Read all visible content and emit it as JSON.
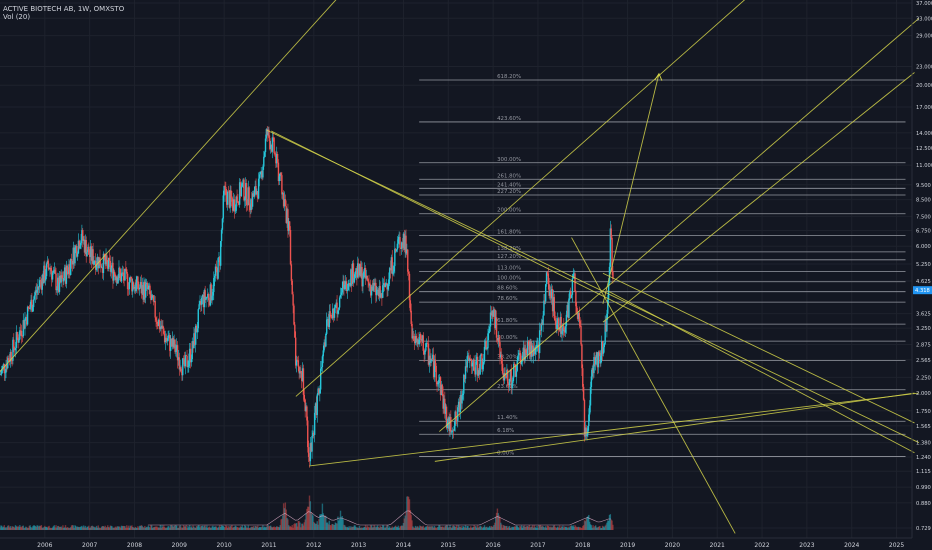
{
  "header": {
    "symbol_line": "ACTIVE BIOTECH AB, 1W, OMXSTO",
    "volume_label": "Vol (20)"
  },
  "colors": {
    "background": "#131722",
    "grid": "#1e222d",
    "up_candle": "#26c6da",
    "down_candle": "#ef5350",
    "drawing": "#d4d44a",
    "fib_level": "#9598a1",
    "axis_text": "#d1d4dc",
    "price_tag": "#2196f3"
  },
  "chart_data": {
    "type": "candlestick",
    "title": "ACTIVE BIOTECH AB, 1W, OMXSTO",
    "price_axis": {
      "scale": "log",
      "ticks": [
        "37.000",
        "33.000",
        "29.000",
        "23.000",
        "20.000",
        "17.000",
        "14.000",
        "12.500",
        "11.000",
        "9.500",
        "8.500",
        "7.500",
        "6.750",
        "6.000",
        "5.250",
        "4.625",
        "3.625",
        "3.250",
        "2.875",
        "2.565",
        "2.250",
        "2.000",
        "1.750",
        "1.565",
        "1.380",
        "1.240",
        "1.115",
        "0.990",
        "0.880",
        "0.729"
      ]
    },
    "time_axis": {
      "ticks": [
        "2006",
        "2007",
        "2008",
        "2009",
        "2010",
        "2011",
        "2012",
        "2013",
        "2014",
        "2015",
        "2016",
        "2017",
        "2018",
        "2019",
        "2020",
        "2021",
        "2022",
        "2023",
        "2024",
        "2025"
      ]
    },
    "last_price": "4.318",
    "price_path": [
      [
        2005.0,
        2.3
      ],
      [
        2005.3,
        2.8
      ],
      [
        2005.6,
        3.6
      ],
      [
        2005.9,
        4.6
      ],
      [
        2006.1,
        5.2
      ],
      [
        2006.3,
        4.4
      ],
      [
        2006.5,
        5.0
      ],
      [
        2006.8,
        6.5
      ],
      [
        2007.0,
        5.6
      ],
      [
        2007.3,
        5.3
      ],
      [
        2007.6,
        4.9
      ],
      [
        2007.9,
        4.6
      ],
      [
        2008.1,
        4.4
      ],
      [
        2008.3,
        4.3
      ],
      [
        2008.5,
        3.5
      ],
      [
        2008.7,
        3.0
      ],
      [
        2008.9,
        2.8
      ],
      [
        2009.1,
        2.4
      ],
      [
        2009.3,
        2.8
      ],
      [
        2009.5,
        4.0
      ],
      [
        2009.7,
        4.2
      ],
      [
        2009.9,
        5.4
      ],
      [
        2010.0,
        9.0
      ],
      [
        2010.2,
        8.2
      ],
      [
        2010.4,
        9.3
      ],
      [
        2010.6,
        8.4
      ],
      [
        2010.8,
        9.6
      ],
      [
        2010.95,
        14.0
      ],
      [
        2011.1,
        12.5
      ],
      [
        2011.3,
        9.0
      ],
      [
        2011.45,
        6.8
      ],
      [
        2011.6,
        2.4
      ],
      [
        2011.75,
        2.3
      ],
      [
        2011.9,
        1.25
      ],
      [
        2012.1,
        2.0
      ],
      [
        2012.3,
        3.4
      ],
      [
        2012.5,
        3.8
      ],
      [
        2012.7,
        4.6
      ],
      [
        2012.9,
        5.0
      ],
      [
        2013.1,
        4.8
      ],
      [
        2013.3,
        4.4
      ],
      [
        2013.5,
        4.1
      ],
      [
        2013.7,
        5.0
      ],
      [
        2013.9,
        6.2
      ],
      [
        2014.05,
        6.2
      ],
      [
        2014.2,
        3.0
      ],
      [
        2014.4,
        2.9
      ],
      [
        2014.6,
        2.6
      ],
      [
        2014.8,
        2.2
      ],
      [
        2015.0,
        1.55
      ],
      [
        2015.2,
        1.65
      ],
      [
        2015.4,
        2.5
      ],
      [
        2015.6,
        2.4
      ],
      [
        2015.8,
        2.6
      ],
      [
        2016.0,
        3.8
      ],
      [
        2016.2,
        2.4
      ],
      [
        2016.4,
        2.2
      ],
      [
        2016.6,
        2.6
      ],
      [
        2016.8,
        2.8
      ],
      [
        2017.0,
        2.7
      ],
      [
        2017.2,
        4.8
      ],
      [
        2017.4,
        3.5
      ],
      [
        2017.6,
        3.3
      ],
      [
        2017.8,
        4.8
      ],
      [
        2017.95,
        3.0
      ],
      [
        2018.05,
        1.4
      ],
      [
        2018.25,
        2.5
      ],
      [
        2018.4,
        2.7
      ],
      [
        2018.55,
        3.5
      ],
      [
        2018.62,
        6.8
      ],
      [
        2018.68,
        4.3
      ]
    ],
    "volume_peaks": [
      [
        2011.35,
        0.55
      ],
      [
        2011.9,
        0.65
      ],
      [
        2012.2,
        0.45
      ],
      [
        2012.6,
        0.35
      ],
      [
        2014.1,
        0.7
      ],
      [
        2016.1,
        0.4
      ],
      [
        2018.1,
        0.35
      ],
      [
        2018.6,
        0.3
      ]
    ],
    "fibonacci_levels": [
      {
        "label": "618.20%",
        "price": 20.8
      },
      {
        "label": "423.60%",
        "price": 15.2
      },
      {
        "label": "300.00%",
        "price": 11.2
      },
      {
        "label": "261.80%",
        "price": 9.9
      },
      {
        "label": "241.40%",
        "price": 9.25
      },
      {
        "label": "227.20%",
        "price": 8.8
      },
      {
        "label": "200.00%",
        "price": 7.65
      },
      {
        "label": "161.80%",
        "price": 6.5
      },
      {
        "label": "138.20%",
        "price": 5.75
      },
      {
        "label": "127.20%",
        "price": 5.42
      },
      {
        "label": "113.00%",
        "price": 4.97
      },
      {
        "label": "100.00%",
        "price": 4.6
      },
      {
        "label": "88.60%",
        "price": 4.27
      },
      {
        "label": "78.60%",
        "price": 3.95
      },
      {
        "label": "61.80%",
        "price": 3.35
      },
      {
        "label": "50.00%",
        "price": 2.95
      },
      {
        "label": "38.20%",
        "price": 2.55
      },
      {
        "label": "23.60%",
        "price": 2.05
      },
      {
        "label": "11.40%",
        "price": 1.62
      },
      {
        "label": "6.18%",
        "price": 1.47
      },
      {
        "label": "0.00%",
        "price": 1.245
      }
    ],
    "fibonacci_range": {
      "start": 2014.35,
      "end": 2025.2
    },
    "trend_lines": [
      {
        "from": [
          2005.0,
          2.35
        ],
        "to": [
          2015.0,
          96.0
        ]
      },
      {
        "from": [
          2011.05,
          14.2
        ],
        "to": [
          2019.8,
          3.3
        ]
      },
      {
        "from": [
          2010.95,
          14.3
        ],
        "to": [
          2025.5,
          1.38
        ]
      },
      {
        "from": [
          2011.9,
          1.16
        ],
        "to": [
          2025.5,
          2.0
        ]
      },
      {
        "from": [
          2011.6,
          1.95
        ],
        "to": [
          2025.5,
          120.0
        ]
      },
      {
        "from": [
          2014.8,
          1.5
        ],
        "to": [
          2025.5,
          33.0
        ]
      },
      {
        "from": [
          2017.75,
          6.4
        ],
        "to": [
          2021.4,
          0.7
        ]
      },
      {
        "from": [
          2014.7,
          1.2
        ],
        "to": [
          2025.4,
          2.0
        ]
      },
      {
        "from": [
          2018.55,
          4.3
        ],
        "to": [
          2025.4,
          1.28
        ]
      },
      {
        "from": [
          2018.45,
          4.9
        ],
        "to": [
          2025.4,
          1.6
        ]
      },
      {
        "from": [
          2018.45,
          3.4
        ],
        "to": [
          2025.4,
          22.0
        ]
      },
      {
        "from": [
          2018.45,
          3.9
        ],
        "to": [
          2019.7,
          21.8
        ]
      }
    ]
  }
}
